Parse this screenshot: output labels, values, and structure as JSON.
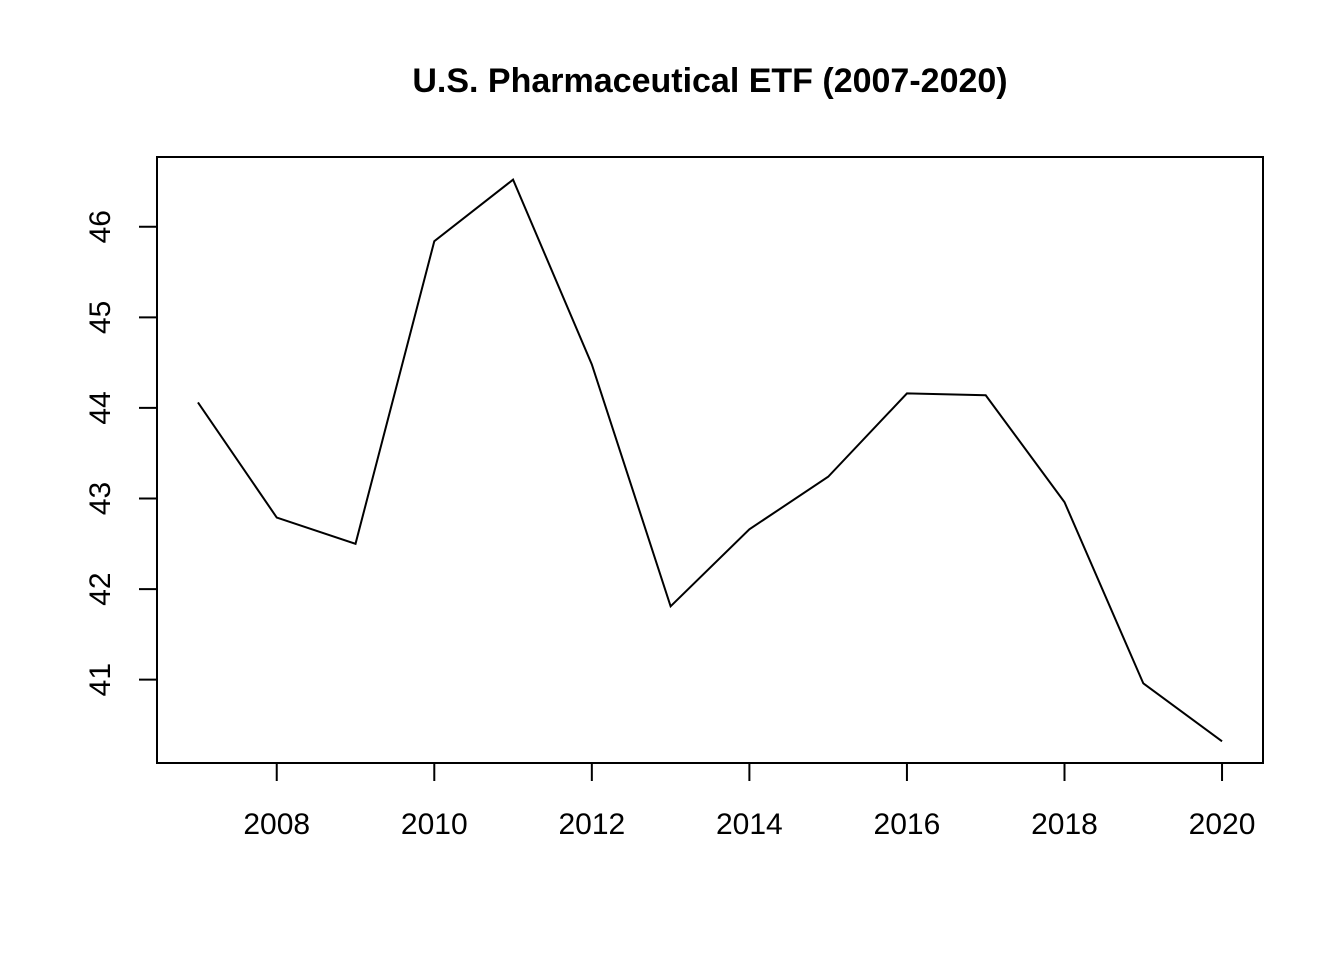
{
  "chart_data": {
    "type": "line",
    "title": "U.S. Pharmaceutical ETF (2007-2020)",
    "xlabel": "",
    "ylabel": "",
    "x": [
      2007,
      2008,
      2009,
      2010,
      2011,
      2012,
      2013,
      2014,
      2015,
      2016,
      2017,
      2018,
      2019,
      2020
    ],
    "series": [
      {
        "values": [
          44.06,
          42.79,
          42.5,
          45.84,
          46.52,
          44.48,
          41.81,
          42.66,
          43.24,
          44.16,
          44.14,
          42.96,
          40.96,
          40.32
        ]
      }
    ],
    "xlim": [
      2006.48,
      2020.52
    ],
    "ylim": [
      40.08,
      46.77
    ],
    "xticks": [
      2008,
      2010,
      2012,
      2014,
      2016,
      2018,
      2020
    ],
    "xtick_labels": [
      "2008",
      "2010",
      "2012",
      "2014",
      "2016",
      "2018",
      "2020"
    ],
    "yticks": [
      41,
      42,
      43,
      44,
      45,
      46
    ],
    "ytick_labels": [
      "41",
      "42",
      "43",
      "44",
      "45",
      "46"
    ],
    "grid": false,
    "legend": "none",
    "colors": {
      "line": "#000000",
      "frame": "#000000",
      "background": "#ffffff"
    }
  }
}
